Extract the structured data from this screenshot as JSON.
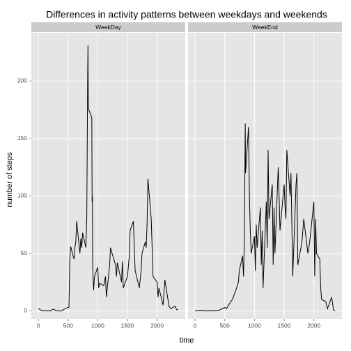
{
  "chart_data": [
    {
      "type": "line",
      "title": "Differences in activity patterns between weekdays and weekends",
      "x_label": "time",
      "y_label": "number of steps",
      "panel": "WeekDay",
      "color": "#000000",
      "grid": true,
      "x": [
        0,
        50,
        100,
        150,
        200,
        250,
        300,
        350,
        400,
        450,
        500,
        515,
        530,
        545,
        600,
        615,
        630,
        645,
        700,
        715,
        730,
        745,
        800,
        815,
        830,
        835,
        840,
        850,
        900,
        905,
        910,
        915,
        930,
        945,
        1000,
        1015,
        1030,
        1100,
        1130,
        1145,
        1200,
        1215,
        1230,
        1300,
        1315,
        1330,
        1400,
        1415,
        1430,
        1500,
        1530,
        1545,
        1600,
        1615,
        1630,
        1700,
        1730,
        1745,
        1800,
        1815,
        1830,
        1845,
        1900,
        1915,
        1930,
        2000,
        2015,
        2030,
        2100,
        2130,
        2200,
        2230,
        2300,
        2330,
        2355
      ],
      "values": [
        2,
        0.5,
        0.3,
        0.2,
        0.1,
        1.5,
        0.3,
        0.2,
        0.3,
        2,
        3,
        3,
        45,
        56,
        45,
        55,
        60,
        78,
        50,
        63,
        55,
        68,
        55,
        80,
        200,
        231,
        182,
        175,
        168,
        95,
        100,
        40,
        18,
        30,
        38,
        20,
        24,
        22,
        30,
        12,
        40,
        55,
        52,
        40,
        30,
        42,
        25,
        43,
        20,
        30,
        47,
        70,
        78,
        55,
        35,
        20,
        35,
        50,
        60,
        55,
        75,
        115,
        80,
        56,
        30,
        25,
        12,
        20,
        5,
        27,
        4,
        2,
        4,
        1,
        1
      ],
      "xlim": [
        -118,
        2473
      ],
      "ylim": [
        -7,
        242
      ],
      "xticks": [
        0,
        500,
        1000,
        1500,
        2000
      ],
      "yticks": [
        0,
        50,
        100,
        150,
        200
      ]
    },
    {
      "type": "line",
      "panel": "WeekEnd",
      "color": "#000000",
      "grid": true,
      "x": [
        0,
        100,
        200,
        300,
        400,
        500,
        530,
        600,
        630,
        700,
        730,
        745,
        800,
        815,
        830,
        845,
        850,
        900,
        915,
        930,
        945,
        1000,
        1015,
        1030,
        1045,
        1100,
        1115,
        1130,
        1145,
        1200,
        1215,
        1230,
        1245,
        1300,
        1315,
        1330,
        1345,
        1400,
        1415,
        1430,
        1500,
        1515,
        1530,
        1545,
        1600,
        1615,
        1630,
        1645,
        1700,
        1715,
        1730,
        1800,
        1830,
        1900,
        1930,
        2000,
        2015,
        2030,
        2045,
        2100,
        2115,
        2130,
        2200,
        2230,
        2300,
        2330,
        2355
      ],
      "values": [
        0.2,
        0.5,
        0.2,
        0.3,
        0.5,
        3,
        2,
        8,
        10,
        20,
        25,
        35,
        48,
        30,
        60,
        163,
        120,
        160,
        100,
        70,
        50,
        65,
        35,
        75,
        55,
        90,
        40,
        70,
        20,
        95,
        55,
        140,
        80,
        110,
        40,
        90,
        50,
        125,
        100,
        70,
        110,
        90,
        80,
        140,
        100,
        120,
        75,
        30,
        110,
        120,
        40,
        60,
        80,
        50,
        60,
        95,
        30,
        80,
        50,
        45,
        20,
        10,
        8,
        2,
        12,
        1,
        0
      ],
      "xlim": [
        -118,
        2473
      ],
      "ylim": [
        -7,
        242
      ],
      "xticks": [
        0,
        500,
        1000,
        1500,
        2000
      ],
      "yticks": [
        0,
        50,
        100,
        150,
        200
      ]
    }
  ]
}
